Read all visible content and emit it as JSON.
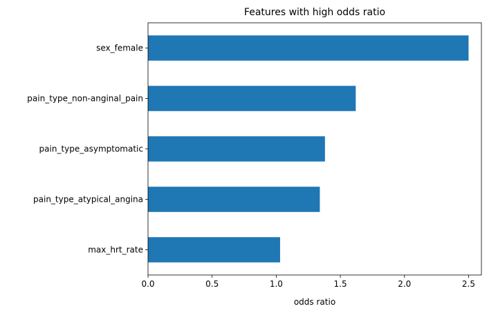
{
  "chart_data": {
    "type": "bar",
    "orientation": "horizontal",
    "title": "Features with high odds ratio",
    "xlabel": "odds ratio",
    "ylabel": "",
    "categories": [
      "sex_female",
      "pain_type_non-anginal_pain",
      "pain_type_asymptomatic",
      "pain_type_atypical_angina",
      "max_hrt_rate"
    ],
    "values": [
      2.5,
      1.62,
      1.38,
      1.34,
      1.03
    ],
    "xlim": [
      0,
      2.6
    ],
    "xticks": [
      "0.0",
      "0.5",
      "1.0",
      "1.5",
      "2.0",
      "2.5"
    ],
    "grid": false,
    "legend": false,
    "bar_color": "#1f77b4"
  }
}
